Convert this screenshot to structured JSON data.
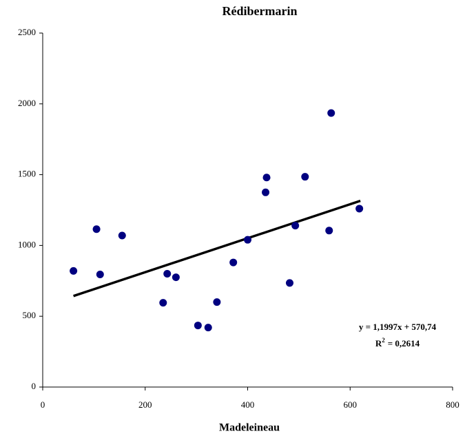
{
  "chart_data": {
    "type": "scatter",
    "title": "Rédibermarin",
    "x_label": "Madeleineau",
    "x": [
      60,
      105,
      112,
      155,
      235,
      243,
      260,
      303,
      323,
      340,
      372,
      400,
      435,
      437,
      482,
      493,
      512,
      559,
      563,
      618
    ],
    "values": [
      820,
      1115,
      795,
      1070,
      595,
      800,
      775,
      435,
      420,
      600,
      880,
      1040,
      1375,
      1480,
      735,
      1140,
      1485,
      1105,
      1935,
      1260
    ],
    "color": "#000080",
    "xlim": [
      0,
      800
    ],
    "xticks": [
      0,
      200,
      400,
      600,
      800
    ],
    "ylim": [
      0,
      2500
    ],
    "yticks": [
      0,
      500,
      1000,
      1500,
      2000,
      2500
    ],
    "grid": false,
    "trendline": {
      "x": [
        60,
        620
      ],
      "values": [
        643,
        1315
      ],
      "color": "#000000"
    },
    "equation": "y = 1,1997x + 570,74",
    "r2": {
      "base": "R",
      "superscript": "2",
      "text": "= 0,2614"
    }
  }
}
